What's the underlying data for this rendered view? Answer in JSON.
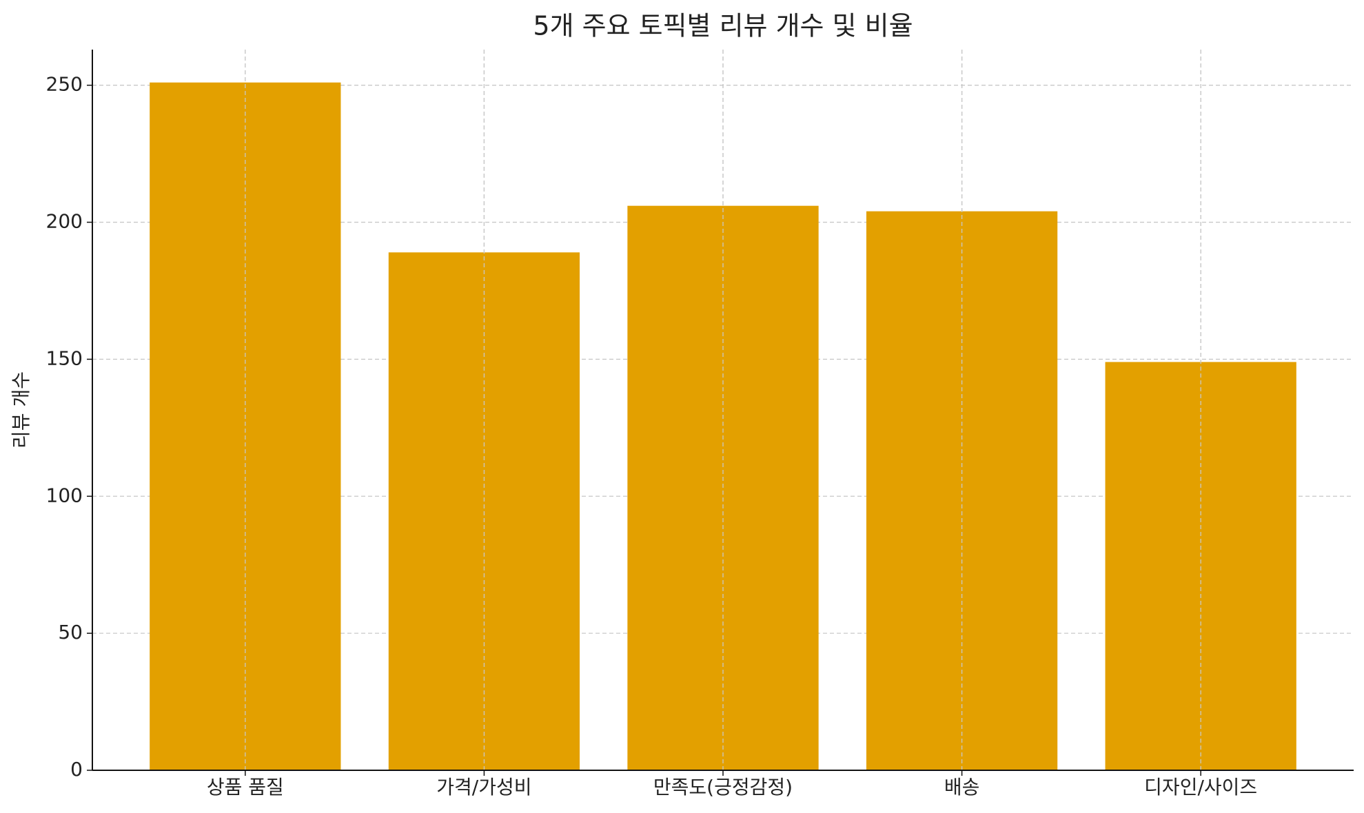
{
  "chart_data": {
    "type": "bar",
    "title": "5개 주요 토픽별 리뷰 개수 및 비율",
    "y_label": "리뷰 개수",
    "categories": [
      "상품 품질",
      "가격/가성비",
      "만족도(긍정감정)",
      "배송",
      "디자인/사이즈"
    ],
    "values": [
      251,
      189,
      206,
      204,
      149
    ],
    "color": "#e3a000",
    "ylim": [
      0,
      263
    ],
    "yticks": [
      0,
      50,
      100,
      150,
      200,
      250
    ],
    "grid": true
  }
}
